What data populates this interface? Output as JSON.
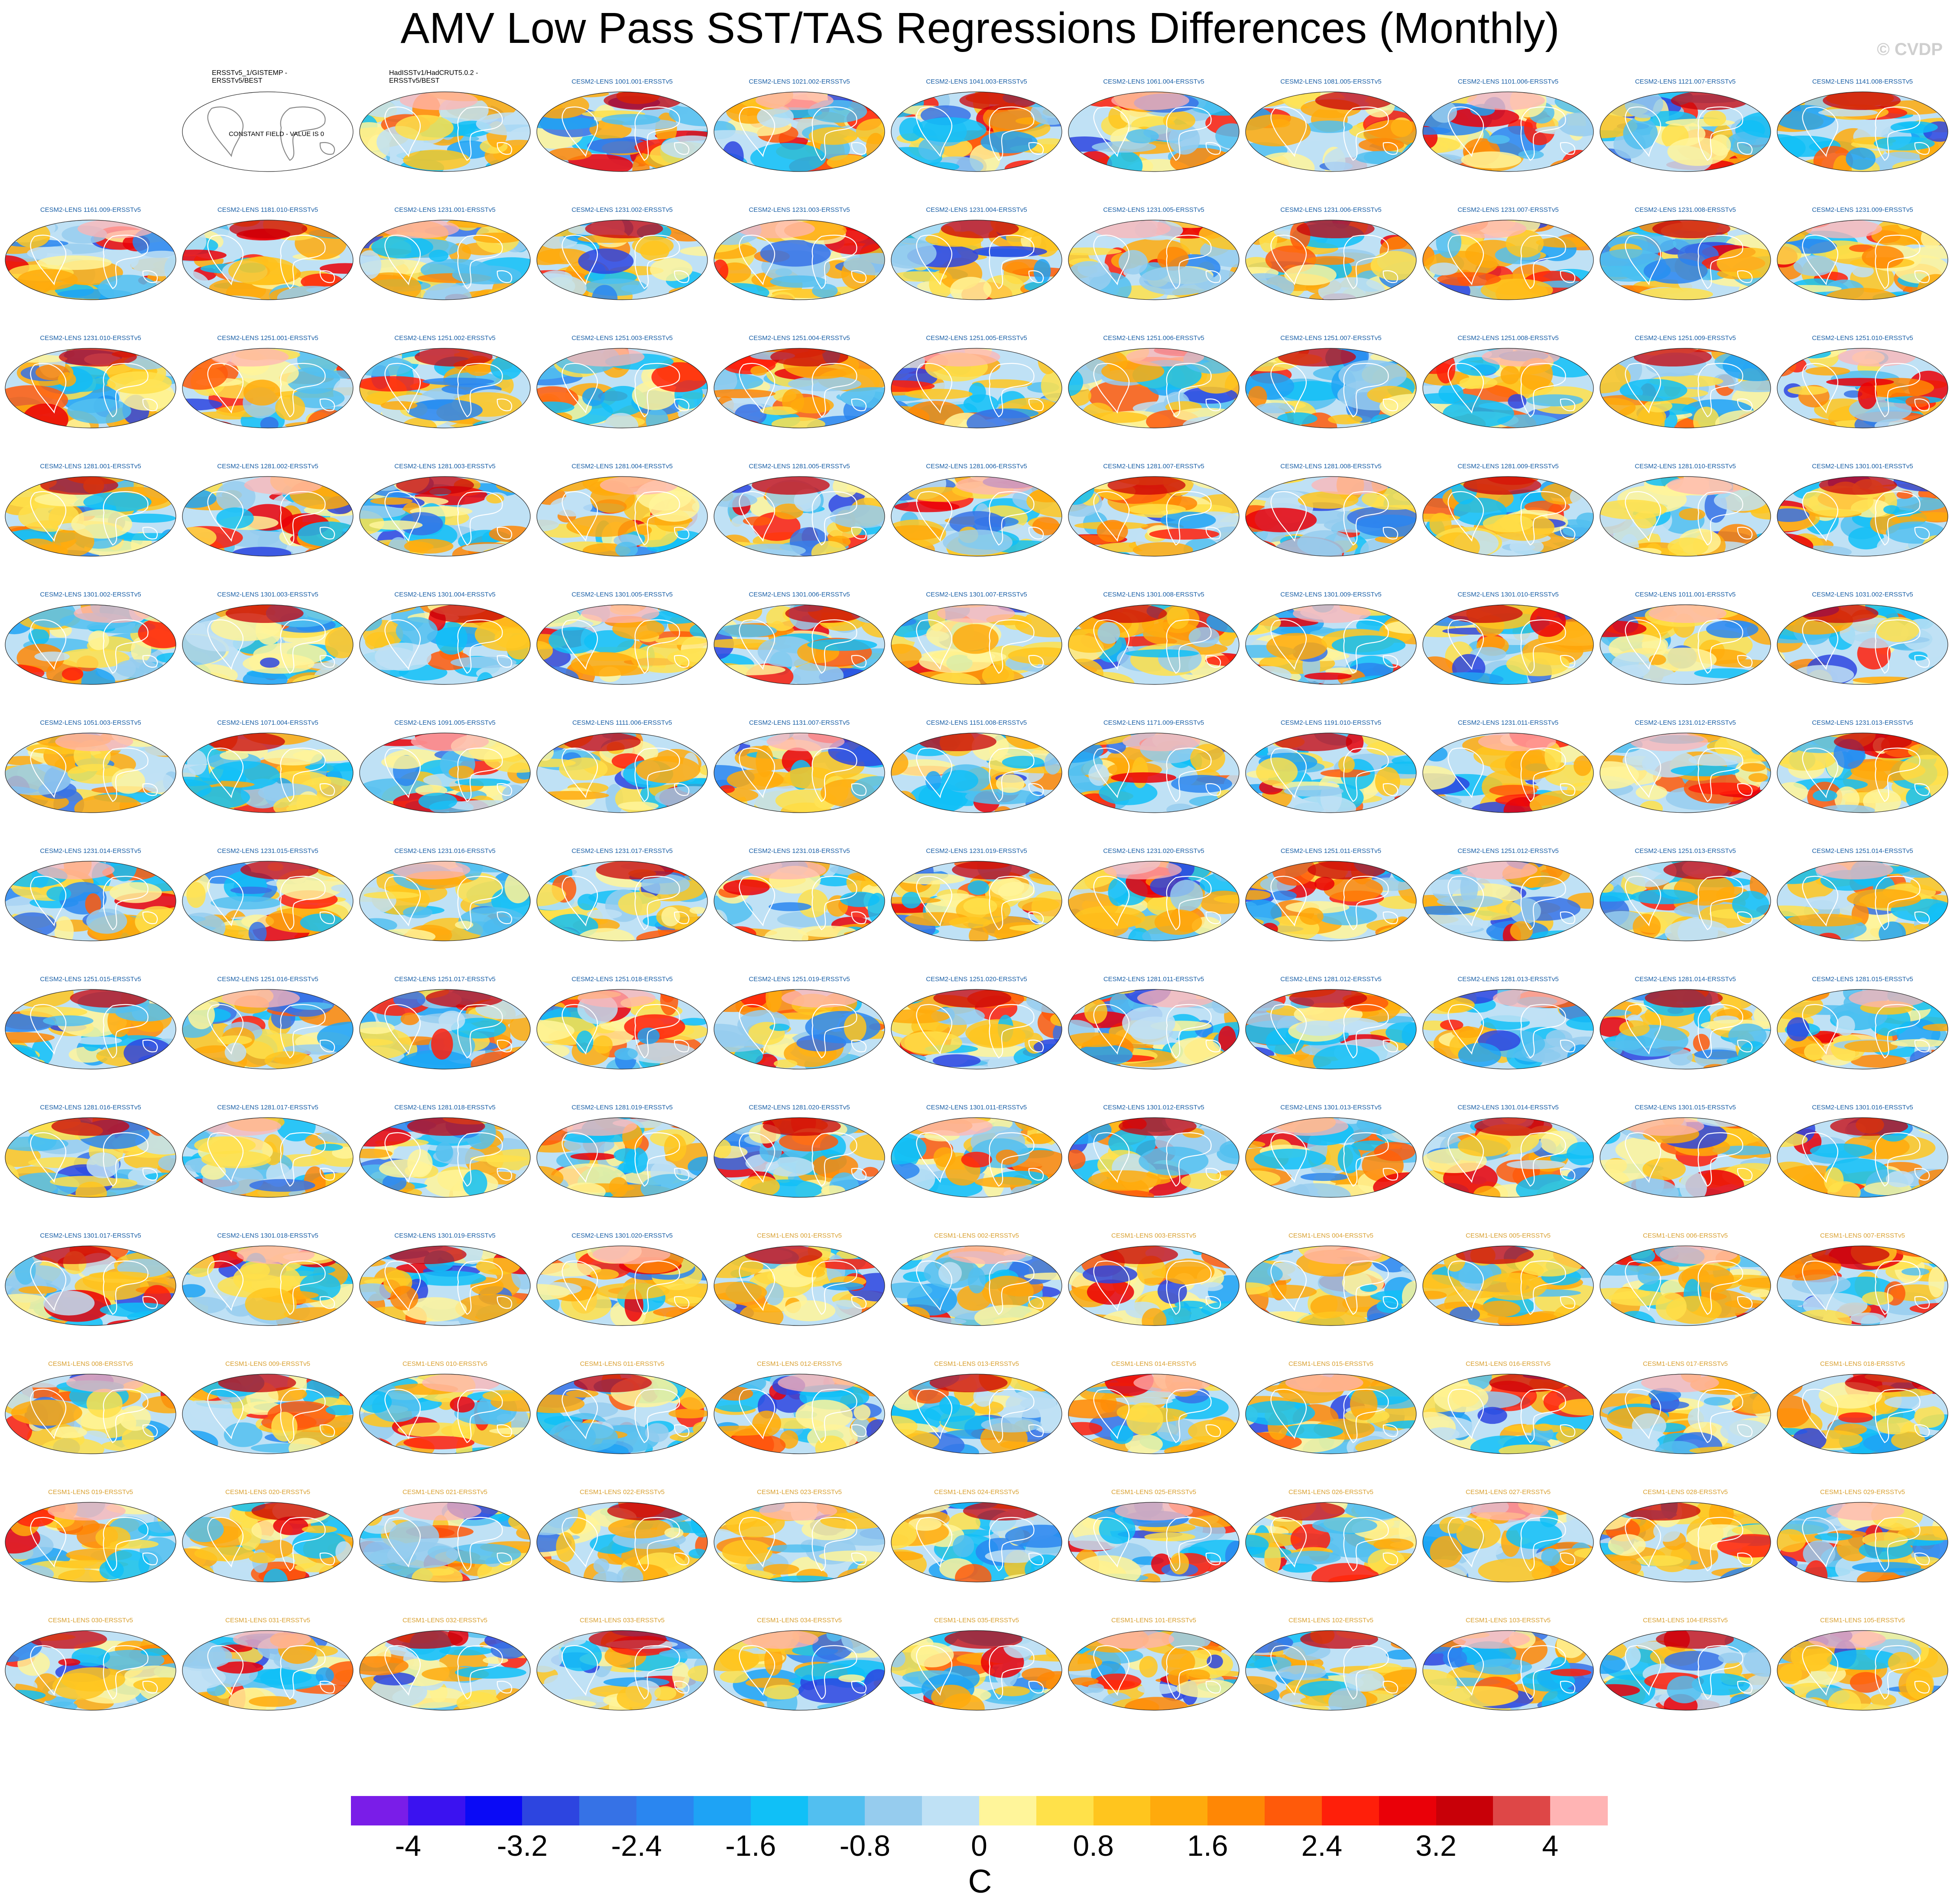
{
  "title": "AMV Low Pass SST/TAS Regressions Differences (Monthly)",
  "watermark": "© CVDP",
  "colorbar": {
    "units": "C",
    "tick_labels": [
      "-4",
      "-3.2",
      "-2.4",
      "-1.6",
      "-0.8",
      "0",
      "0.8",
      "1.6",
      "2.4",
      "3.2",
      "4"
    ],
    "colors": [
      "#7a1de8",
      "#3b12f0",
      "#0a0af6",
      "#2d45e0",
      "#3672e6",
      "#2a86f0",
      "#1ea3f5",
      "#10c0f7",
      "#52bff0",
      "#96ccee",
      "#bfe1f5",
      "#fff59a",
      "#ffe14a",
      "#ffc51e",
      "#ffaa0c",
      "#ff8705",
      "#ff5a0a",
      "#ff1f0a",
      "#ea0008",
      "#c80008",
      "#de4747",
      "#ffb4b4"
    ]
  },
  "panels": [
    {
      "label": ""
    },
    {
      "label": "ERSSTv5_1/GISTEMP -\nERSSTv5/BEST",
      "kind": "obs",
      "note": "CONSTANT FIELD - VALUE IS 0"
    },
    {
      "label": "HadISSTv1/HadCRUT5.0.2 -\nERSSTv5/BEST",
      "kind": "obs"
    },
    {
      "label": "CESM2-LENS 1001.001-ERSSTv5"
    },
    {
      "label": "CESM2-LENS 1021.002-ERSSTv5"
    },
    {
      "label": "CESM2-LENS 1041.003-ERSSTv5"
    },
    {
      "label": "CESM2-LENS 1061.004-ERSSTv5"
    },
    {
      "label": "CESM2-LENS 1081.005-ERSSTv5"
    },
    {
      "label": "CESM2-LENS 1101.006-ERSSTv5"
    },
    {
      "label": "CESM2-LENS 1121.007-ERSSTv5"
    },
    {
      "label": "CESM2-LENS 1141.008-ERSSTv5"
    },
    {
      "label": "CESM2-LENS 1161.009-ERSSTv5"
    },
    {
      "label": "CESM2-LENS 1181.010-ERSSTv5"
    },
    {
      "label": "CESM2-LENS 1231.001-ERSSTv5"
    },
    {
      "label": "CESM2-LENS 1231.002-ERSSTv5"
    },
    {
      "label": "CESM2-LENS 1231.003-ERSSTv5"
    },
    {
      "label": "CESM2-LENS 1231.004-ERSSTv5"
    },
    {
      "label": "CESM2-LENS 1231.005-ERSSTv5"
    },
    {
      "label": "CESM2-LENS 1231.006-ERSSTv5"
    },
    {
      "label": "CESM2-LENS 1231.007-ERSSTv5"
    },
    {
      "label": "CESM2-LENS 1231.008-ERSSTv5"
    },
    {
      "label": "CESM2-LENS 1231.009-ERSSTv5"
    },
    {
      "label": "CESM2-LENS 1231.010-ERSSTv5"
    },
    {
      "label": "CESM2-LENS 1251.001-ERSSTv5"
    },
    {
      "label": "CESM2-LENS 1251.002-ERSSTv5"
    },
    {
      "label": "CESM2-LENS 1251.003-ERSSTv5"
    },
    {
      "label": "CESM2-LENS 1251.004-ERSSTv5"
    },
    {
      "label": "CESM2-LENS 1251.005-ERSSTv5"
    },
    {
      "label": "CESM2-LENS 1251.006-ERSSTv5"
    },
    {
      "label": "CESM2-LENS 1251.007-ERSSTv5"
    },
    {
      "label": "CESM2-LENS 1251.008-ERSSTv5"
    },
    {
      "label": "CESM2-LENS 1251.009-ERSSTv5"
    },
    {
      "label": "CESM2-LENS 1251.010-ERSSTv5"
    },
    {
      "label": "CESM2-LENS 1281.001-ERSSTv5"
    },
    {
      "label": "CESM2-LENS 1281.002-ERSSTv5"
    },
    {
      "label": "CESM2-LENS 1281.003-ERSSTv5"
    },
    {
      "label": "CESM2-LENS 1281.004-ERSSTv5"
    },
    {
      "label": "CESM2-LENS 1281.005-ERSSTv5"
    },
    {
      "label": "CESM2-LENS 1281.006-ERSSTv5"
    },
    {
      "label": "CESM2-LENS 1281.007-ERSSTv5"
    },
    {
      "label": "CESM2-LENS 1281.008-ERSSTv5"
    },
    {
      "label": "CESM2-LENS 1281.009-ERSSTv5"
    },
    {
      "label": "CESM2-LENS 1281.010-ERSSTv5"
    },
    {
      "label": "CESM2-LENS 1301.001-ERSSTv5"
    },
    {
      "label": "CESM2-LENS 1301.002-ERSSTv5"
    },
    {
      "label": "CESM2-LENS 1301.003-ERSSTv5"
    },
    {
      "label": "CESM2-LENS 1301.004-ERSSTv5"
    },
    {
      "label": "CESM2-LENS 1301.005-ERSSTv5"
    },
    {
      "label": "CESM2-LENS 1301.006-ERSSTv5"
    },
    {
      "label": "CESM2-LENS 1301.007-ERSSTv5"
    },
    {
      "label": "CESM2-LENS 1301.008-ERSSTv5"
    },
    {
      "label": "CESM2-LENS 1301.009-ERSSTv5"
    },
    {
      "label": "CESM2-LENS 1301.010-ERSSTv5"
    },
    {
      "label": "CESM2-LENS 1011.001-ERSSTv5"
    },
    {
      "label": "CESM2-LENS 1031.002-ERSSTv5"
    },
    {
      "label": "CESM2-LENS 1051.003-ERSSTv5"
    },
    {
      "label": "CESM2-LENS 1071.004-ERSSTv5"
    },
    {
      "label": "CESM2-LENS 1091.005-ERSSTv5"
    },
    {
      "label": "CESM2-LENS 1111.006-ERSSTv5"
    },
    {
      "label": "CESM2-LENS 1131.007-ERSSTv5"
    },
    {
      "label": "CESM2-LENS 1151.008-ERSSTv5"
    },
    {
      "label": "CESM2-LENS 1171.009-ERSSTv5"
    },
    {
      "label": "CESM2-LENS 1191.010-ERSSTv5"
    },
    {
      "label": "CESM2-LENS 1231.011-ERSSTv5"
    },
    {
      "label": "CESM2-LENS 1231.012-ERSSTv5"
    },
    {
      "label": "CESM2-LENS 1231.013-ERSSTv5"
    },
    {
      "label": "CESM2-LENS 1231.014-ERSSTv5"
    },
    {
      "label": "CESM2-LENS 1231.015-ERSSTv5"
    },
    {
      "label": "CESM2-LENS 1231.016-ERSSTv5"
    },
    {
      "label": "CESM2-LENS 1231.017-ERSSTv5"
    },
    {
      "label": "CESM2-LENS 1231.018-ERSSTv5"
    },
    {
      "label": "CESM2-LENS 1231.019-ERSSTv5"
    },
    {
      "label": "CESM2-LENS 1231.020-ERSSTv5"
    },
    {
      "label": "CESM2-LENS 1251.011-ERSSTv5"
    },
    {
      "label": "CESM2-LENS 1251.012-ERSSTv5"
    },
    {
      "label": "CESM2-LENS 1251.013-ERSSTv5"
    },
    {
      "label": "CESM2-LENS 1251.014-ERSSTv5"
    },
    {
      "label": "CESM2-LENS 1251.015-ERSSTv5"
    },
    {
      "label": "CESM2-LENS 1251.016-ERSSTv5"
    },
    {
      "label": "CESM2-LENS 1251.017-ERSSTv5"
    },
    {
      "label": "CESM2-LENS 1251.018-ERSSTv5"
    },
    {
      "label": "CESM2-LENS 1251.019-ERSSTv5"
    },
    {
      "label": "CESM2-LENS 1251.020-ERSSTv5"
    },
    {
      "label": "CESM2-LENS 1281.011-ERSSTv5"
    },
    {
      "label": "CESM2-LENS 1281.012-ERSSTv5"
    },
    {
      "label": "CESM2-LENS 1281.013-ERSSTv5"
    },
    {
      "label": "CESM2-LENS 1281.014-ERSSTv5"
    },
    {
      "label": "CESM2-LENS 1281.015-ERSSTv5"
    },
    {
      "label": "CESM2-LENS 1281.016-ERSSTv5"
    },
    {
      "label": "CESM2-LENS 1281.017-ERSSTv5"
    },
    {
      "label": "CESM2-LENS 1281.018-ERSSTv5"
    },
    {
      "label": "CESM2-LENS 1281.019-ERSSTv5"
    },
    {
      "label": "CESM2-LENS 1281.020-ERSSTv5"
    },
    {
      "label": "CESM2-LENS 1301.011-ERSSTv5"
    },
    {
      "label": "CESM2-LENS 1301.012-ERSSTv5"
    },
    {
      "label": "CESM2-LENS 1301.013-ERSSTv5"
    },
    {
      "label": "CESM2-LENS 1301.014-ERSSTv5"
    },
    {
      "label": "CESM2-LENS 1301.015-ERSSTv5"
    },
    {
      "label": "CESM2-LENS 1301.016-ERSSTv5"
    },
    {
      "label": "CESM2-LENS 1301.017-ERSSTv5"
    },
    {
      "label": "CESM2-LENS 1301.018-ERSSTv5"
    },
    {
      "label": "CESM2-LENS 1301.019-ERSSTv5"
    },
    {
      "label": "CESM2-LENS 1301.020-ERSSTv5"
    },
    {
      "label": "CESM1-LENS 001-ERSSTv5"
    },
    {
      "label": "CESM1-LENS 002-ERSSTv5"
    },
    {
      "label": "CESM1-LENS 003-ERSSTv5"
    },
    {
      "label": "CESM1-LENS 004-ERSSTv5"
    },
    {
      "label": "CESM1-LENS 005-ERSSTv5"
    },
    {
      "label": "CESM1-LENS 006-ERSSTv5"
    },
    {
      "label": "CESM1-LENS 007-ERSSTv5"
    },
    {
      "label": "CESM1-LENS 008-ERSSTv5"
    },
    {
      "label": "CESM1-LENS 009-ERSSTv5"
    },
    {
      "label": "CESM1-LENS 010-ERSSTv5"
    },
    {
      "label": "CESM1-LENS 011-ERSSTv5"
    },
    {
      "label": "CESM1-LENS 012-ERSSTv5"
    },
    {
      "label": "CESM1-LENS 013-ERSSTv5"
    },
    {
      "label": "CESM1-LENS 014-ERSSTv5"
    },
    {
      "label": "CESM1-LENS 015-ERSSTv5"
    },
    {
      "label": "CESM1-LENS 016-ERSSTv5"
    },
    {
      "label": "CESM1-LENS 017-ERSSTv5"
    },
    {
      "label": "CESM1-LENS 018-ERSSTv5"
    },
    {
      "label": "CESM1-LENS 019-ERSSTv5"
    },
    {
      "label": "CESM1-LENS 020-ERSSTv5"
    },
    {
      "label": "CESM1-LENS 021-ERSSTv5"
    },
    {
      "label": "CESM1-LENS 022-ERSSTv5"
    },
    {
      "label": "CESM1-LENS 023-ERSSTv5"
    },
    {
      "label": "CESM1-LENS 024-ERSSTv5"
    },
    {
      "label": "CESM1-LENS 025-ERSSTv5"
    },
    {
      "label": "CESM1-LENS 026-ERSSTv5"
    },
    {
      "label": "CESM1-LENS 027-ERSSTv5"
    },
    {
      "label": "CESM1-LENS 028-ERSSTv5"
    },
    {
      "label": "CESM1-LENS 029-ERSSTv5"
    },
    {
      "label": "CESM1-LENS 030-ERSSTv5"
    },
    {
      "label": "CESM1-LENS 031-ERSSTv5"
    },
    {
      "label": "CESM1-LENS 032-ERSSTv5"
    },
    {
      "label": "CESM1-LENS 033-ERSSTv5"
    },
    {
      "label": "CESM1-LENS 034-ERSSTv5"
    },
    {
      "label": "CESM1-LENS 035-ERSSTv5"
    },
    {
      "label": "CESM1-LENS 101-ERSSTv5"
    },
    {
      "label": "CESM1-LENS 102-ERSSTv5"
    },
    {
      "label": "CESM1-LENS 103-ERSSTv5"
    },
    {
      "label": "CESM1-LENS 104-ERSSTv5"
    },
    {
      "label": "CESM1-LENS 105-ERSSTv5"
    }
  ],
  "chart_data": {
    "type": "heatmap",
    "title": "AMV Low Pass SST/TAS Regressions Differences (Monthly)",
    "colorbar_units": "C",
    "colorbar_levels": [
      -4.4,
      -4.0,
      -3.6,
      -3.2,
      -2.8,
      -2.4,
      -2.0,
      -1.6,
      -1.2,
      -0.8,
      -0.4,
      0,
      0.4,
      0.8,
      1.2,
      1.6,
      2.0,
      2.4,
      2.8,
      3.2,
      3.6,
      4.0,
      4.4
    ],
    "colorbar_tick_values": [
      -4,
      -3.2,
      -2.4,
      -1.6,
      -0.8,
      0,
      0.8,
      1.6,
      2.4,
      3.2,
      4
    ],
    "panel_count": 142,
    "grid_columns": 11,
    "grid_rows": 13,
    "constant_field_panel": {
      "label": "ERSSTv5_1/GISTEMP -\nERSSTv5/BEST",
      "value": 0
    }
  }
}
